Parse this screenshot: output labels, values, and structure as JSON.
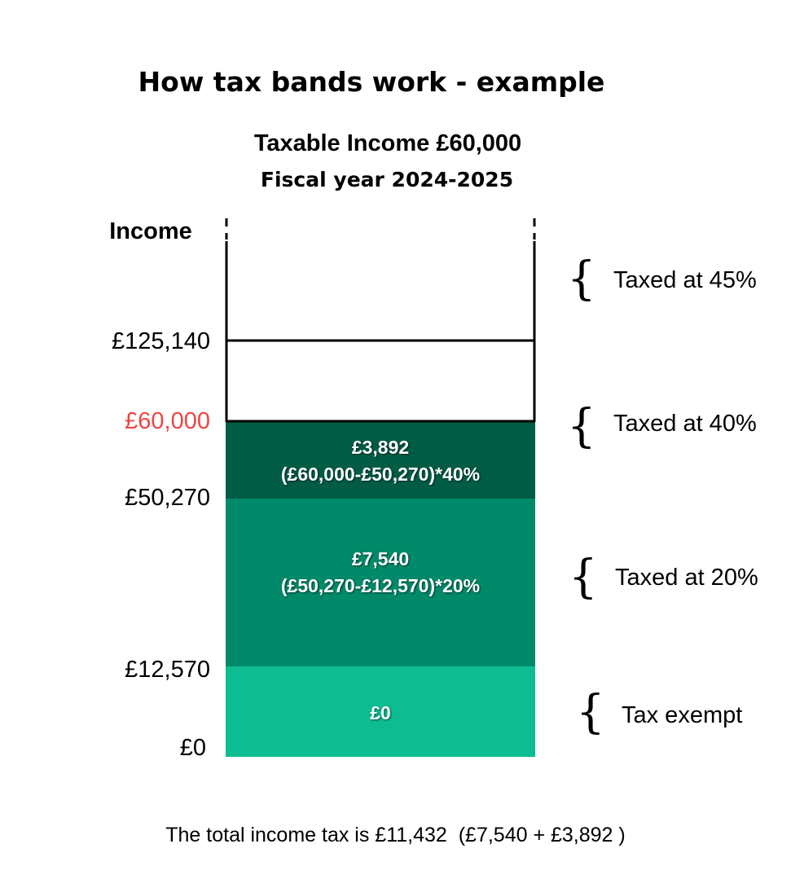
{
  "title": "How tax bands work - example",
  "subtitle": "Taxable Income £60,000",
  "fiscal_year": "Fiscal year 2024-2025",
  "axis_label": "Income",
  "colors": {
    "highlight": "#ef4444",
    "band_40": "#005c45",
    "band_20": "#008a6a",
    "band_0": "#0dbd91",
    "outline": "#000000"
  },
  "thresholds": [
    {
      "label": "£125,140",
      "value": 125140
    },
    {
      "label": "£60,000",
      "value": 60000,
      "highlight": true
    },
    {
      "label": "£50,270",
      "value": 50270
    },
    {
      "label": "£12,570",
      "value": 12570
    },
    {
      "label": "£0",
      "value": 0
    }
  ],
  "bands": [
    {
      "rate": "Taxed at 45%",
      "from": 125140,
      "to": null,
      "filled": false
    },
    {
      "rate": "Taxed at 40%",
      "from": 50270,
      "to": 125140,
      "filled_to": 60000,
      "amount": "£3,892",
      "formula": "(£60,000-£50,270)*40%"
    },
    {
      "rate": "Taxed at 20%",
      "from": 12570,
      "to": 50270,
      "amount": "£7,540",
      "formula": "(£50,270-£12,570)*20%"
    },
    {
      "rate": "Tax exempt",
      "from": 0,
      "to": 12570,
      "amount": "£0"
    }
  ],
  "brace_glyph": "{",
  "footer": "The total income tax is £11,432  (£7,540 + £3,892 )"
}
